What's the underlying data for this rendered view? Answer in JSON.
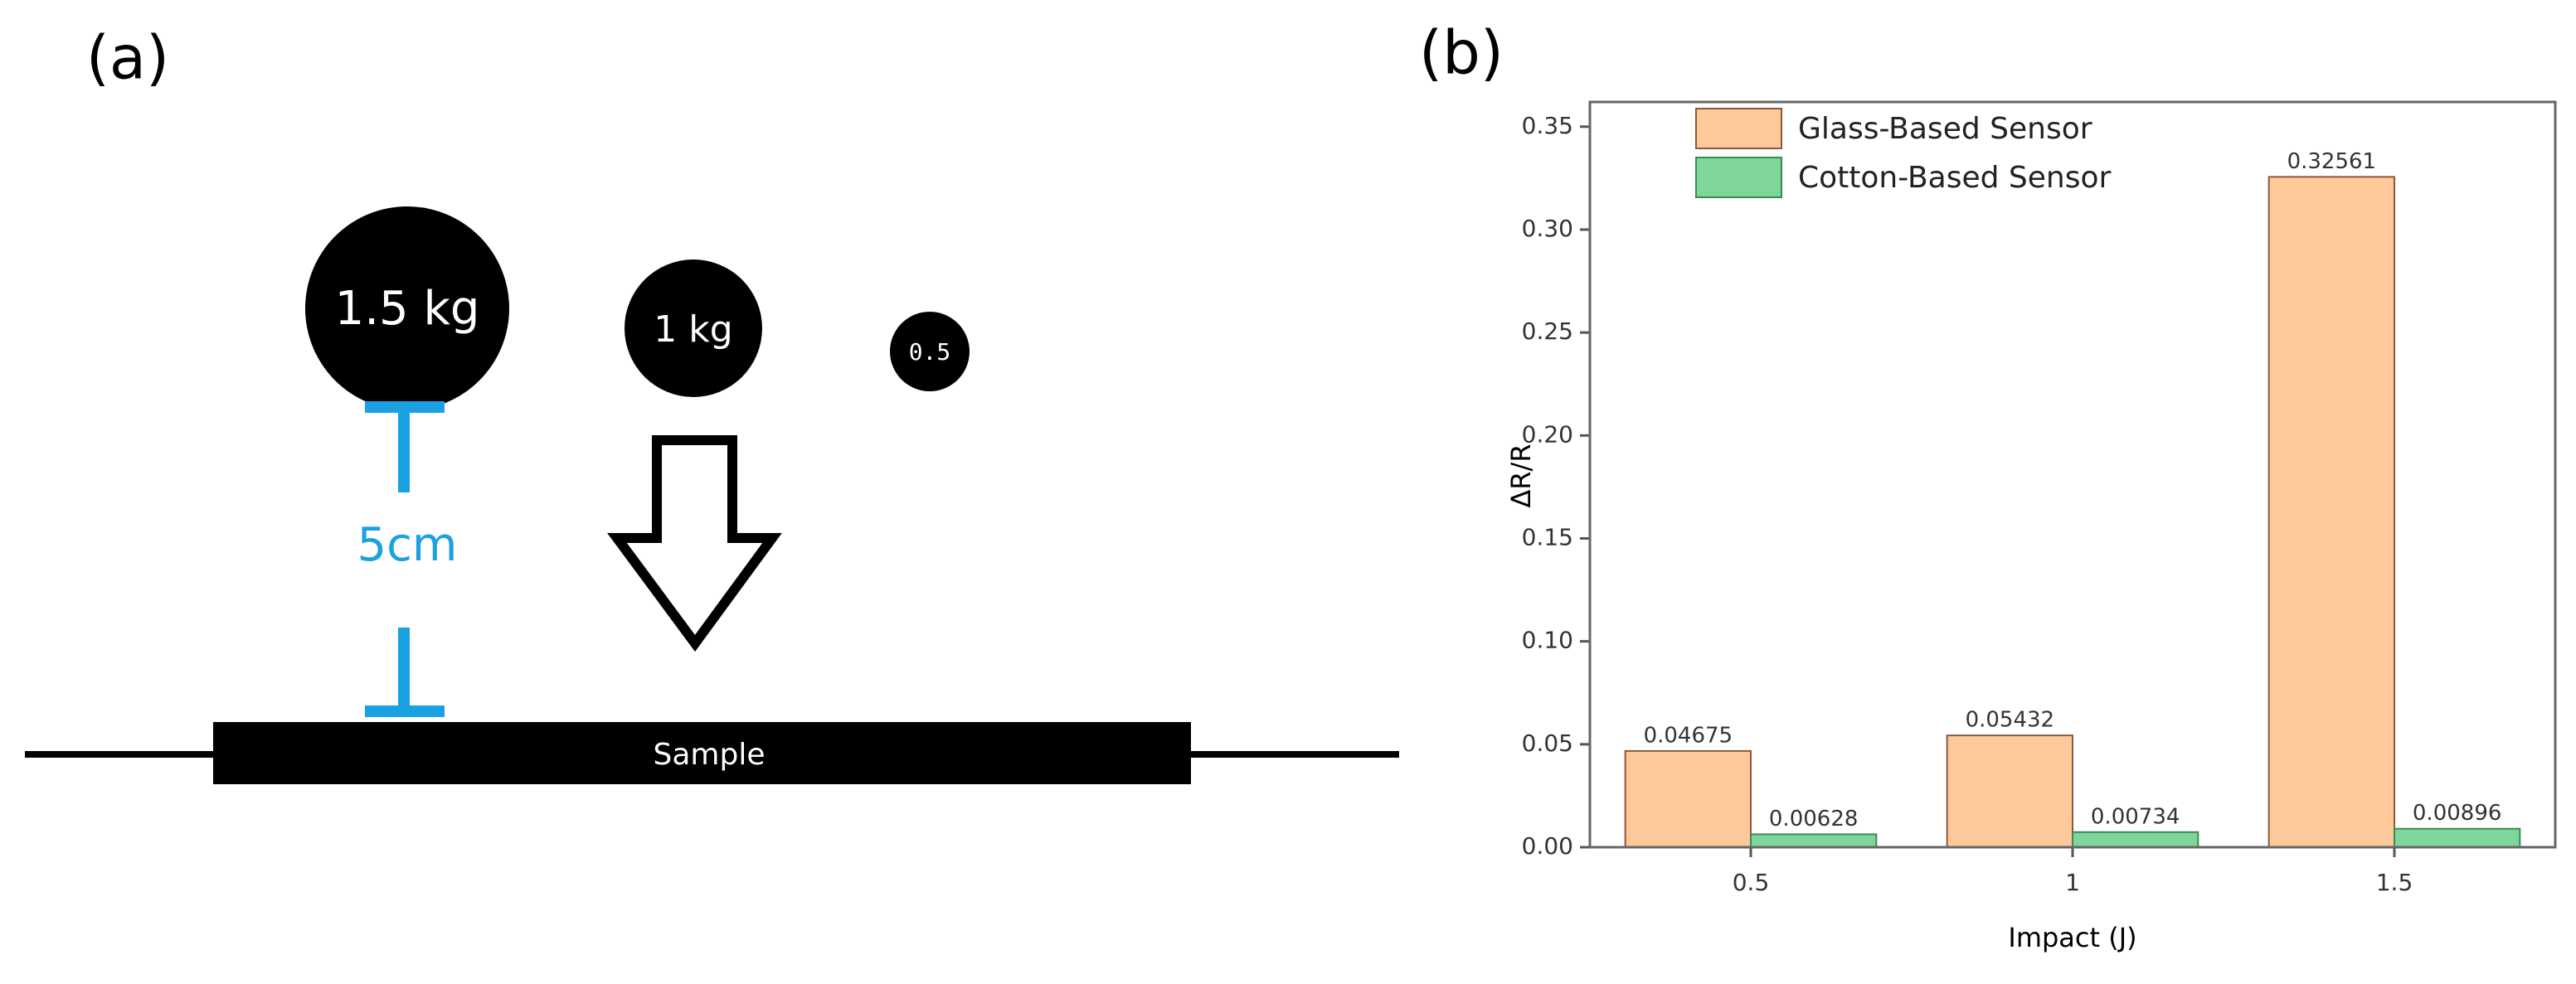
{
  "panel_a": {
    "label": "(a)",
    "weights": [
      "1.5 kg",
      "1 kg",
      "0.5"
    ],
    "height": "5cm",
    "sample": "Sample"
  },
  "chart_data": {
    "type": "bar",
    "panel_label": "(b)",
    "x_label": "Impact (J)",
    "y_label": "ΔR/R",
    "categories": [
      "0.5",
      "1",
      "1.5"
    ],
    "series": [
      {
        "name": "Glass-Based Sensor",
        "color": "#fdc89a",
        "values": [
          0.04675,
          0.05432,
          0.32561
        ]
      },
      {
        "name": "Cotton-Based Sensor",
        "color": "#7fd69a",
        "values": [
          0.00628,
          0.00734,
          0.00896
        ]
      }
    ],
    "ylim": [
      0,
      0.362
    ],
    "yticks": [
      {
        "value": 0,
        "label": "0.00"
      },
      {
        "value": 0.05,
        "label": "0.05"
      },
      {
        "value": 0.1,
        "label": "0.10"
      },
      {
        "value": 0.15,
        "label": "0.15"
      },
      {
        "value": 0.2,
        "label": "0.20"
      },
      {
        "value": 0.25,
        "label": "0.25"
      },
      {
        "value": 0.3,
        "label": "0.30"
      },
      {
        "value": 0.35,
        "label": "0.35"
      }
    ],
    "legend": "upper left"
  }
}
